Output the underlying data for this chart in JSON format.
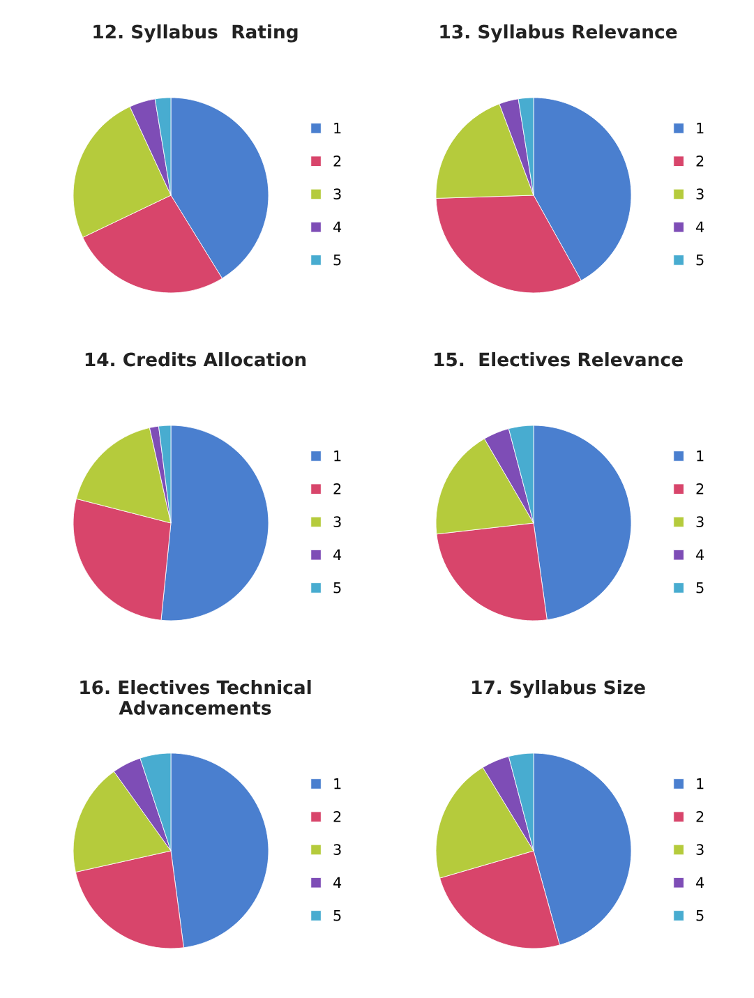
{
  "chart_data": [
    {
      "type": "pie",
      "title": "12. Syllabus  Rating",
      "categories": [
        "1",
        "2",
        "3",
        "4",
        "5"
      ],
      "values": [
        41.2,
        26.7,
        25.2,
        4.3,
        2.6
      ],
      "colors": [
        "#4a7fcf",
        "#d8456b",
        "#b5cb3c",
        "#7e4db6",
        "#48acd0"
      ],
      "legend": "right"
    },
    {
      "type": "pie",
      "title": "13. Syllabus Relevance",
      "categories": [
        "1",
        "2",
        "3",
        "4",
        "5"
      ],
      "values": [
        41.9,
        32.6,
        19.8,
        3.2,
        2.5
      ],
      "colors": [
        "#4a7fcf",
        "#d8456b",
        "#b5cb3c",
        "#7e4db6",
        "#48acd0"
      ],
      "legend": "right"
    },
    {
      "type": "pie",
      "title": "14. Credits Allocation",
      "categories": [
        "1",
        "2",
        "3",
        "4",
        "5"
      ],
      "values": [
        51.6,
        27.4,
        17.5,
        1.5,
        2.0
      ],
      "colors": [
        "#4a7fcf",
        "#d8456b",
        "#b5cb3c",
        "#7e4db6",
        "#48acd0"
      ],
      "legend": "right"
    },
    {
      "type": "pie",
      "title": "15.  Electives Relevance",
      "categories": [
        "1",
        "2",
        "3",
        "4",
        "5"
      ],
      "values": [
        47.8,
        25.4,
        18.4,
        4.3,
        4.1
      ],
      "colors": [
        "#4a7fcf",
        "#d8456b",
        "#b5cb3c",
        "#7e4db6",
        "#48acd0"
      ],
      "legend": "right"
    },
    {
      "type": "pie",
      "title": "16. Electives Technical\nAdvancements",
      "categories": [
        "1",
        "2",
        "3",
        "4",
        "5"
      ],
      "values": [
        47.9,
        23.6,
        18.6,
        4.8,
        5.1
      ],
      "colors": [
        "#4a7fcf",
        "#d8456b",
        "#b5cb3c",
        "#7e4db6",
        "#48acd0"
      ],
      "legend": "right"
    },
    {
      "type": "pie",
      "title": "17. Syllabus Size",
      "categories": [
        "1",
        "2",
        "3",
        "4",
        "5"
      ],
      "values": [
        45.7,
        24.8,
        20.8,
        4.6,
        4.1
      ],
      "colors": [
        "#4a7fcf",
        "#d8456b",
        "#b5cb3c",
        "#7e4db6",
        "#48acd0"
      ],
      "legend": "right"
    }
  ]
}
